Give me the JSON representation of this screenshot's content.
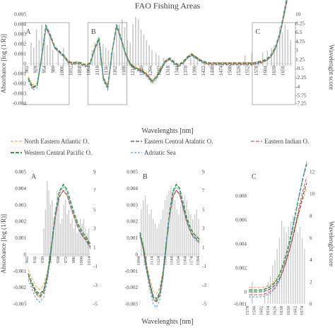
{
  "title": "FAO Fishing Areas",
  "colors": {
    "bars": "#c9c9c9",
    "north_eastern_atlantic": "#f0a05a",
    "eastern_central_atlantic": "#4a4a4a",
    "eastern_indian": "#d9534f",
    "western_central_pacific": "#3a9a4a",
    "adriatic": "#5b9bd5",
    "box": "#9a9a9a"
  },
  "legend": {
    "items": [
      {
        "key": "north_eastern_atlantic",
        "label": "North Eastern Atlantic O."
      },
      {
        "key": "eastern_central_atlantic",
        "label": "Eastern Central Atalntic O."
      },
      {
        "key": "eastern_indian",
        "label": "Eastern Indian O."
      },
      {
        "key": "western_central_pacific",
        "label": "Western Central Pacific O."
      },
      {
        "key": "adriatic",
        "label": "Adriatic Sea"
      }
    ]
  },
  "chart_data": [
    {
      "type": "line",
      "title": "FAO Fishing Areas",
      "xlabel": "Wavelenghts [nm]",
      "ylabel": "Absorbance [log (1/R)]",
      "y2label": "Wavelenght score",
      "xlim": [
        902,
        1680
      ],
      "ylim": [
        -0.004,
        0.005
      ],
      "y2lim": [
        -7.25,
        10
      ],
      "yticks": [
        "0.005",
        "0.004",
        "0.003",
        "0.002",
        "0.001",
        "0",
        "-0.001",
        "-0.002",
        "-0.003",
        "-0.004"
      ],
      "y2ticks": [
        "10",
        "8.25",
        "6.5",
        "4.75",
        "3",
        "1.25",
        "-0.5",
        "-2.25",
        "-4",
        "-5.75",
        "-7.25"
      ],
      "y2tick_values": [
        10,
        8.25,
        6.5,
        4.75,
        3,
        1.25,
        -0.5,
        -2.25,
        -4,
        -5.75,
        -7.25
      ],
      "xticks": [
        "902",
        "928",
        "954",
        "980",
        "1006",
        "1032",
        "1058",
        "1084",
        "1110",
        "1136",
        "1162",
        "1188",
        "1214",
        "1240",
        "1266",
        "1292",
        "1318",
        "1344",
        "1370",
        "1396",
        "1422",
        "1448",
        "1474",
        "1500",
        "1526",
        "1552",
        "1578",
        "1604",
        "1630",
        "1656"
      ],
      "regions": [
        {
          "label": "A",
          "x": [
            902,
            1014
          ]
        },
        {
          "label": "B",
          "x": [
            1094,
            1184
          ]
        },
        {
          "label": "C",
          "x": [
            1578,
            1680
          ]
        }
      ],
      "spectrum": {
        "x": [
          902,
          915,
          928,
          941,
          954,
          967,
          980,
          993,
          1006,
          1019,
          1032,
          1045,
          1058,
          1071,
          1084,
          1097,
          1110,
          1123,
          1136,
          1149,
          1162,
          1175,
          1188,
          1201,
          1214,
          1227,
          1240,
          1253,
          1266,
          1279,
          1292,
          1305,
          1318,
          1331,
          1344,
          1357,
          1370,
          1383,
          1396,
          1409,
          1422,
          1435,
          1448,
          1461,
          1474,
          1487,
          1500,
          1513,
          1526,
          1539,
          1552,
          1565,
          1578,
          1591,
          1604,
          1617,
          1630,
          1643,
          1656,
          1669,
          1680
        ],
        "y": [
          -0.0015,
          -0.0024,
          -0.0022,
          0.0005,
          0.0037,
          0.0028,
          0.0016,
          0.0012,
          0.0008,
          0.0002,
          0.0,
          0.0001,
          0.0,
          -0.0002,
          0.0,
          0.0014,
          0.0025,
          -0.0015,
          -0.0024,
          0.0012,
          0.0038,
          0.0025,
          0.001,
          0.0,
          -0.0004,
          -0.0006,
          -0.0008,
          -0.0012,
          -0.0018,
          -0.0014,
          -0.0006,
          0.0002,
          0.0005,
          0.0001,
          -0.0002,
          0.0001,
          0.0006,
          0.0009,
          0.0006,
          0.0003,
          0.0001,
          0.0,
          0.0,
          0.0,
          0.0,
          0.0,
          0.0,
          0.0,
          0.0,
          0.0,
          0.0,
          0.0,
          0.0001,
          0.0002,
          0.0004,
          0.0008,
          0.0016,
          0.003,
          0.0052,
          0.0075,
          0.0095
        ]
      },
      "scores": {
        "x": [
          910,
          918,
          926,
          934,
          942,
          950,
          958,
          966,
          974,
          990,
          1006,
          1020,
          1050,
          1090,
          1098,
          1106,
          1114,
          1122,
          1130,
          1138,
          1146,
          1154,
          1162,
          1170,
          1178,
          1186,
          1194,
          1202,
          1210,
          1218,
          1226,
          1234,
          1242,
          1250,
          1258,
          1266,
          1278,
          1286,
          1300,
          1330,
          1360,
          1380,
          1390,
          1400,
          1420,
          1470,
          1500,
          1540,
          1560,
          1580,
          1592,
          1606,
          1618,
          1626,
          1634,
          1642,
          1650,
          1658,
          1666,
          1674
        ],
        "y": [
          4.5,
          3.5,
          7,
          5,
          8,
          5.5,
          4,
          6,
          3,
          2.5,
          3.5,
          1,
          0.5,
          3,
          4.5,
          5,
          3.8,
          4.2,
          3.5,
          3,
          2.5,
          2.5,
          6.5,
          8,
          9,
          7.5,
          5,
          4.5,
          8,
          9.5,
          9,
          7,
          6,
          5,
          4,
          3,
          2.5,
          2,
          1.5,
          1,
          1,
          1.5,
          2,
          1,
          0.5,
          0.5,
          0.5,
          2,
          2.5,
          1,
          2.5,
          3,
          3.5,
          4,
          5,
          7.5,
          6.5,
          8,
          7,
          5
        ]
      }
    },
    {
      "type": "line",
      "label": "A",
      "xlim": [
        902,
        1014
      ],
      "ylim": [
        -0.003,
        0.005
      ],
      "y2lim": [
        -5,
        9
      ],
      "yticks": [
        "0.005",
        "0.004",
        "0.003",
        "0.002",
        "0.001",
        "0",
        "-0.001",
        "-0.002",
        "-0.003"
      ],
      "y2ticks": [
        "9",
        "7",
        "5",
        "3",
        "1",
        "-1",
        "-3",
        "-5"
      ],
      "y2tick_values": [
        9,
        7,
        5,
        3,
        1,
        -1,
        -3,
        -5
      ],
      "xticks": [
        "902",
        "916",
        "930",
        "944",
        "958",
        "972",
        "986",
        "1000",
        "1014"
      ],
      "spectrum": {
        "x": [
          902,
          909,
          916,
          923,
          930,
          937,
          944,
          951,
          958,
          965,
          972,
          979,
          986,
          993,
          1000,
          1007,
          1014
        ],
        "y": [
          -0.0012,
          -0.0018,
          -0.0023,
          -0.0025,
          -0.0022,
          -0.0012,
          0.0005,
          0.0024,
          0.0036,
          0.004,
          0.0037,
          0.0029,
          0.0022,
          0.0016,
          0.0012,
          0.0009,
          0.0005
        ]
      },
      "scores": {
        "x": [
          930,
          933,
          936,
          939,
          942,
          945,
          948,
          951,
          954,
          957,
          960,
          963,
          966,
          969,
          972,
          975,
          978,
          981,
          984,
          987,
          990,
          993,
          996,
          999,
          1002,
          1005,
          1008,
          1011
        ],
        "y": [
          3,
          5,
          8,
          7,
          5.5,
          6,
          4,
          5,
          7,
          6,
          3.5,
          4,
          5.5,
          6,
          4.5,
          5,
          3.5,
          4,
          3,
          3.5,
          2.5,
          3,
          4,
          3.5,
          4,
          3,
          2.5,
          3
        ]
      }
    },
    {
      "type": "line",
      "label": "B",
      "xlim": [
        1094,
        1184
      ],
      "ylim": [
        -0.003,
        0.005
      ],
      "y2lim": [
        -5,
        9
      ],
      "yticks": [
        "0.005",
        "0.004",
        "0.003",
        "0.002",
        "0.001",
        "0",
        "-0.001",
        "-0.002",
        "-0.003"
      ],
      "y2ticks": [
        "9",
        "7",
        "5",
        "3",
        "1",
        "-1",
        "-3",
        "-5"
      ],
      "y2tick_values": [
        9,
        7,
        5,
        3,
        1,
        -1,
        -3,
        -5
      ],
      "xticks": [
        "1094",
        "1104",
        "1114",
        "1124",
        "1134",
        "1144",
        "1154",
        "1164",
        "1174",
        "1184"
      ],
      "spectrum": {
        "x": [
          1094,
          1099,
          1104,
          1109,
          1114,
          1119,
          1124,
          1129,
          1134,
          1139,
          1144,
          1149,
          1154,
          1159,
          1164,
          1169,
          1174,
          1179,
          1184
        ],
        "y": [
          0.0012,
          0.0004,
          -0.0008,
          -0.0018,
          -0.0026,
          -0.0028,
          -0.0024,
          -0.0012,
          0.0006,
          0.0024,
          0.0036,
          0.004,
          0.0038,
          0.003,
          0.0022,
          0.0016,
          0.0012,
          0.001,
          0.0008
        ]
      },
      "scores": {
        "x": [
          1096,
          1099,
          1102,
          1105,
          1108,
          1111,
          1114,
          1117,
          1120,
          1123,
          1126,
          1129,
          1132,
          1135,
          1138,
          1141,
          1144,
          1147,
          1150,
          1153,
          1156,
          1159,
          1162,
          1165,
          1168,
          1171,
          1174,
          1177,
          1180,
          1183
        ],
        "y": [
          5,
          6,
          6.5,
          5.5,
          4.5,
          5,
          4,
          3.5,
          3,
          3.5,
          4,
          5,
          6,
          6.5,
          7,
          7.5,
          7,
          6,
          5,
          4.5,
          5.5,
          6,
          6.5,
          6,
          5,
          4.5,
          4,
          4.5,
          5,
          4
        ]
      }
    },
    {
      "type": "line",
      "label": "C",
      "xlim": [
        1578,
        1680
      ],
      "ylim": [
        -0.001,
        0.01
      ],
      "y2lim": [
        0,
        12
      ],
      "yticks": [
        "0.008",
        "0.006",
        "0.004",
        "0.002",
        "0",
        "-0.001"
      ],
      "ytick_values": [
        0.008,
        0.006,
        0.004,
        0.002,
        0,
        -0.001
      ],
      "y2ticks": [
        "12",
        "10",
        "8",
        "6",
        "4",
        "2",
        "0"
      ],
      "y2tick_values": [
        12,
        10,
        8,
        6,
        4,
        2,
        0
      ],
      "y2label": "Wavelenght score",
      "xticks": [
        "1578",
        "1590",
        "1602",
        "1614",
        "1626",
        "1638",
        "1650",
        "1662",
        "1674"
      ],
      "spectrum": {
        "x": [
          1578,
          1590,
          1602,
          1608,
          1614,
          1620,
          1626,
          1632,
          1638,
          1644,
          1650,
          1656,
          1662,
          1668,
          1674,
          1680
        ],
        "y": [
          0,
          0,
          0,
          0.0001,
          0.0002,
          0.0004,
          0.0007,
          0.0012,
          0.0019,
          0.0028,
          0.0038,
          0.005,
          0.0063,
          0.0076,
          0.0088,
          0.0098
        ]
      },
      "scores": {
        "x": [
          1584,
          1606,
          1612,
          1616,
          1620,
          1624,
          1628,
          1632,
          1636,
          1640,
          1644,
          1648,
          1652,
          1656,
          1660,
          1664,
          1668,
          1672,
          1676
        ],
        "y": [
          2,
          1.5,
          2,
          2.5,
          3.5,
          4,
          5,
          6,
          7.5,
          7,
          6.5,
          7,
          7.5,
          8,
          7,
          6.5,
          7,
          6,
          5
        ]
      }
    }
  ],
  "bottom_xlabel": "Wavelenghts [nm]"
}
